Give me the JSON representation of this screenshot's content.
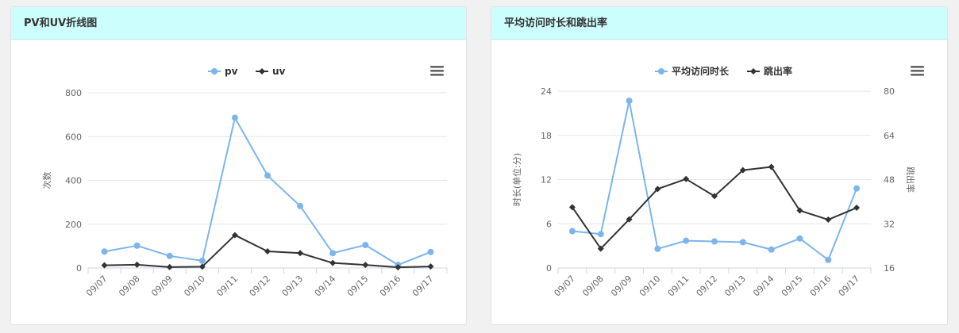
{
  "panels": [
    {
      "title": "PV和UV折线图",
      "chart_data": {
        "type": "line",
        "categories": [
          "09/07",
          "09/08",
          "09/09",
          "09/10",
          "09/11",
          "09/12",
          "09/13",
          "09/14",
          "09/15",
          "09/16",
          "09/17"
        ],
        "series": [
          {
            "name": "pv",
            "values": [
              75,
              102,
              55,
              33,
              686,
              422,
              283,
              68,
              105,
              14,
              73
            ],
            "color": "#7cb5ec",
            "marker": "circle",
            "axis": "left"
          },
          {
            "name": "uv",
            "values": [
              12,
              15,
              4,
              6,
              150,
              76,
              68,
              23,
              14,
              3,
              7
            ],
            "color": "#333333",
            "marker": "diamond",
            "axis": "left"
          }
        ],
        "yAxisLeft": {
          "label": "次数",
          "min": 0,
          "max": 800,
          "ticks": [
            0,
            200,
            400,
            600,
            800
          ]
        },
        "grid": true,
        "legend": "top-center"
      }
    },
    {
      "title": "平均访问时长和跳出率",
      "chart_data": {
        "type": "line",
        "categories": [
          "09/07",
          "09/08",
          "09/09",
          "09/10",
          "09/11",
          "09/12",
          "09/13",
          "09/14",
          "09/15",
          "09/16",
          "09/17"
        ],
        "series": [
          {
            "name": "平均访问时长",
            "values": [
              5,
              4.6,
              22.7,
              2.6,
              3.7,
              3.6,
              3.5,
              2.5,
              4,
              1.1,
              10.8
            ],
            "color": "#7cb5ec",
            "marker": "circle",
            "axis": "left"
          },
          {
            "name": "跳出率",
            "values": [
              38,
              23,
              33.6,
              44.6,
              48.2,
              42,
              51.4,
              52.6,
              36.8,
              33.5,
              37.8
            ],
            "color": "#333333",
            "marker": "diamond",
            "axis": "right"
          }
        ],
        "yAxisLeft": {
          "label": "时长(单位:分)",
          "min": 0,
          "max": 24,
          "ticks": [
            0,
            6,
            12,
            18,
            24
          ]
        },
        "yAxisRight": {
          "label": "跳出率",
          "min": 16,
          "max": 80,
          "ticks": [
            16,
            32,
            48,
            64,
            80
          ]
        },
        "grid": true,
        "legend": "top-center"
      }
    }
  ]
}
